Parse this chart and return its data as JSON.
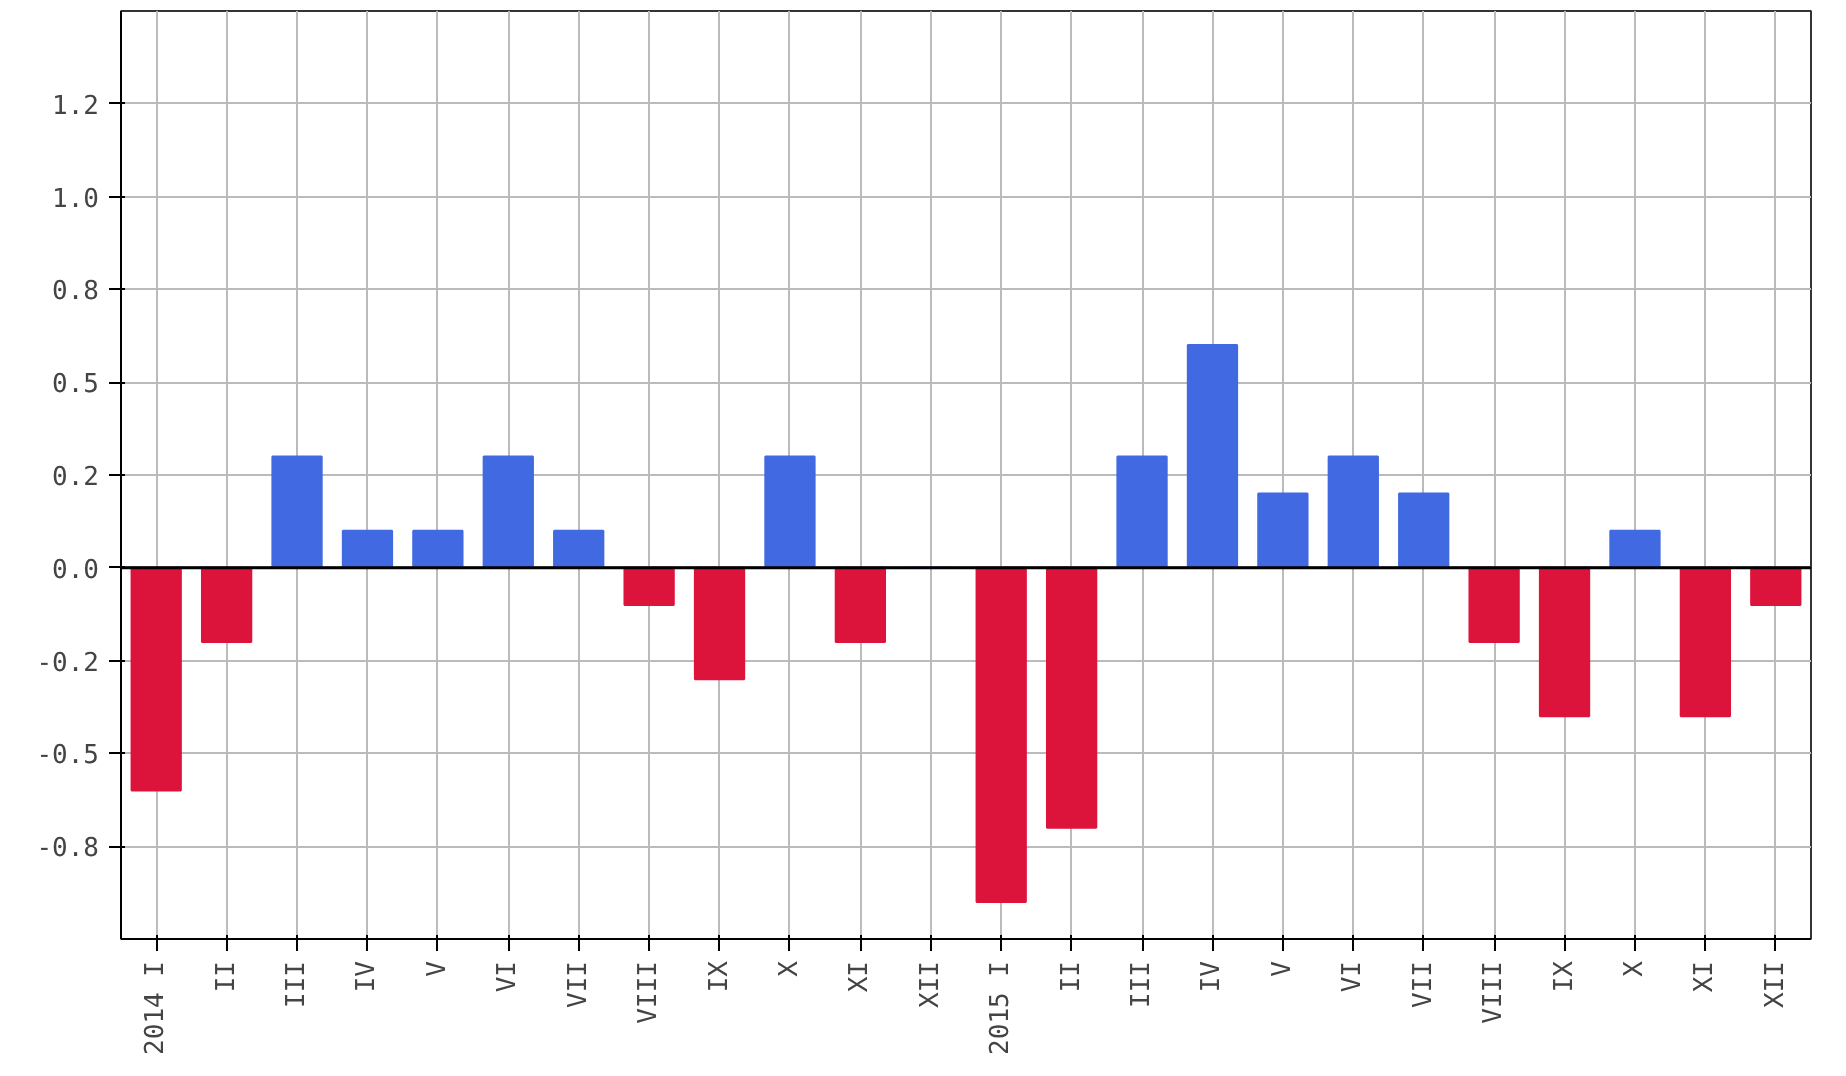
{
  "chart_data": {
    "type": "bar",
    "categories": [
      "2014 I",
      "II",
      "III",
      "IV",
      "V",
      "VI",
      "VII",
      "VIII",
      "IX",
      "X",
      "XI",
      "XII",
      "2015 I",
      "II",
      "III",
      "IV",
      "V",
      "VI",
      "VII",
      "VIII",
      "IX",
      "X",
      "XI",
      "XII"
    ],
    "values": [
      -0.6,
      -0.2,
      0.3,
      0.1,
      0.1,
      0.3,
      0.1,
      -0.1,
      -0.3,
      0.3,
      -0.2,
      0.0,
      -0.9,
      -0.7,
      0.3,
      0.6,
      0.2,
      0.3,
      0.2,
      -0.2,
      -0.4,
      0.1,
      -0.4,
      -0.1
    ],
    "colors": [
      "#dc143c",
      "#dc143c",
      "#4169e1",
      "#4169e1",
      "#4169e1",
      "#4169e1",
      "#4169e1",
      "#dc143c",
      "#dc143c",
      "#4169e1",
      "#dc143c",
      "#4169e1",
      "#dc143c",
      "#dc143c",
      "#4169e1",
      "#4169e1",
      "#4169e1",
      "#4169e1",
      "#4169e1",
      "#dc143c",
      "#dc143c",
      "#4169e1",
      "#dc143c",
      "#dc143c"
    ],
    "ylim": [
      -1.0,
      1.5
    ],
    "yticks": [
      {
        "value": -0.75,
        "label": "-0.8"
      },
      -0.5,
      {
        "value": -0.25,
        "label": "-0.2"
      },
      {
        "value": 0.0,
        "label": "0.0"
      },
      {
        "value": 0.25,
        "label": "0.2"
      },
      0.5,
      {
        "value": 0.75,
        "label": "0.8"
      },
      {
        "value": 1.0,
        "label": "1.0"
      },
      {
        "value": 1.25,
        "label": "1.2"
      }
    ],
    "ref_lines": [
      {
        "axis": "y",
        "value": 0,
        "color": "#000000"
      }
    ],
    "grid": true
  }
}
